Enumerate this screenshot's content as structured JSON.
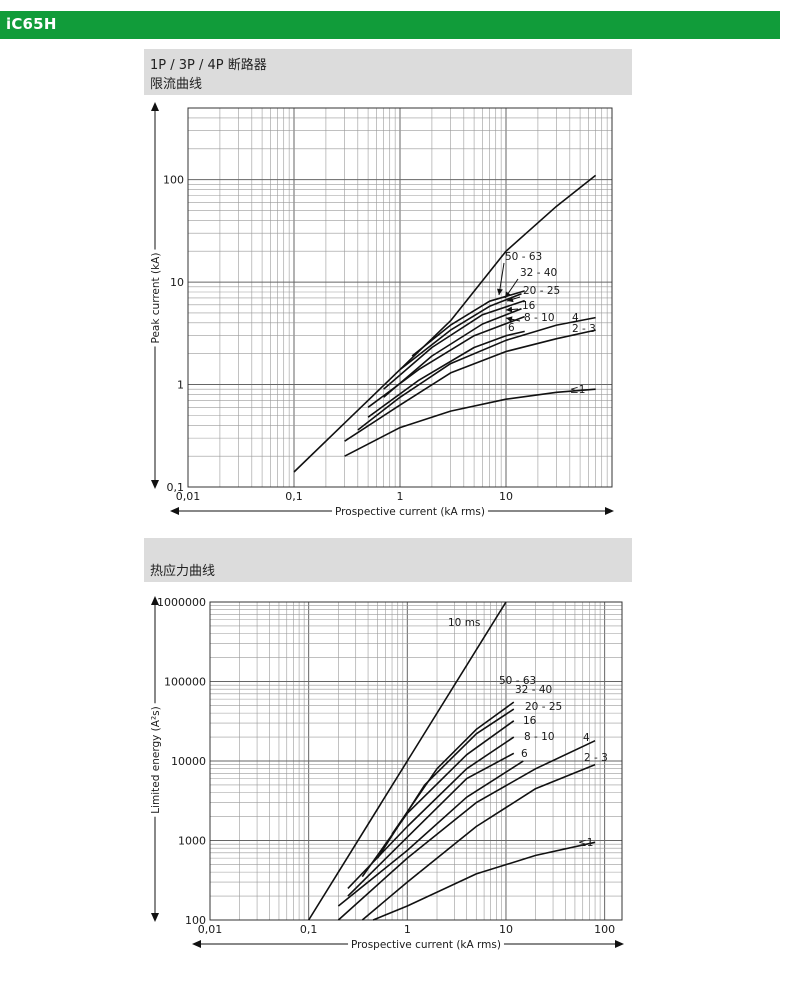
{
  "header": {
    "title": "iC65H"
  },
  "charts_meta": {
    "chart1_heading": [
      "1P / 3P / 4P 断路器",
      "限流曲线"
    ],
    "chart2_heading": "热应力曲线"
  },
  "chart_data": [
    {
      "type": "line",
      "title": "限流曲线",
      "xlabel": "Prospective current (kA rms)",
      "ylabel": "Peak current (kA)",
      "xscale": "log",
      "yscale": "log",
      "xlim": [
        0.01,
        100
      ],
      "ylim": [
        0.1,
        500
      ],
      "grid": true,
      "xticks": [
        {
          "v": 0.01,
          "label": "0,01"
        },
        {
          "v": 0.1,
          "label": "0,1"
        },
        {
          "v": 1,
          "label": "1"
        },
        {
          "v": 10,
          "label": "10"
        }
      ],
      "yticks": [
        {
          "v": 0.1,
          "label": "0,1"
        },
        {
          "v": 1,
          "label": "1"
        },
        {
          "v": 10,
          "label": "10"
        },
        {
          "v": 100,
          "label": "100"
        }
      ],
      "series": [
        {
          "name": "",
          "points": [
            [
              0.1,
              0.14
            ],
            [
              0.3,
              0.42
            ],
            [
              1,
              1.4
            ],
            [
              3,
              4.2
            ],
            [
              10,
              20
            ],
            [
              30,
              55
            ],
            [
              70,
              110
            ]
          ]
        },
        {
          "name": "50 - 63",
          "points": [
            [
              1.3,
              1.9
            ],
            [
              3,
              3.8
            ],
            [
              7,
              6.5
            ],
            [
              15,
              8.2
            ]
          ]
        },
        {
          "name": "32 - 40",
          "points": [
            [
              1.0,
              1.4
            ],
            [
              3,
              3.4
            ],
            [
              7,
              5.8
            ],
            [
              14,
              7.7
            ]
          ]
        },
        {
          "name": "20 - 25",
          "points": [
            [
              0.7,
              0.9
            ],
            [
              2,
              2.3
            ],
            [
              6,
              4.8
            ],
            [
              15,
              6.6
            ]
          ]
        },
        {
          "name": "16",
          "points": [
            [
              0.7,
              0.75
            ],
            [
              2,
              1.9
            ],
            [
              6,
              3.9
            ],
            [
              14,
              5.5
            ]
          ]
        },
        {
          "name": "8 - 10",
          "points": [
            [
              0.5,
              0.6
            ],
            [
              1.5,
              1.4
            ],
            [
              5,
              3.0
            ],
            [
              15,
              4.6
            ]
          ]
        },
        {
          "name": "6",
          "points": [
            [
              0.5,
              0.48
            ],
            [
              1.5,
              1.1
            ],
            [
              5,
              2.3
            ],
            [
              10,
              3.0
            ],
            [
              15,
              3.3
            ]
          ]
        },
        {
          "name": "4",
          "points": [
            [
              0.4,
              0.36
            ],
            [
              1,
              0.75
            ],
            [
              3,
              1.6
            ],
            [
              10,
              2.7
            ],
            [
              30,
              3.8
            ],
            [
              70,
              4.5
            ]
          ]
        },
        {
          "name": "2 - 3",
          "points": [
            [
              0.3,
              0.28
            ],
            [
              1,
              0.63
            ],
            [
              3,
              1.3
            ],
            [
              10,
              2.1
            ],
            [
              30,
              2.8
            ],
            [
              70,
              3.4
            ]
          ]
        },
        {
          "name": "≤1",
          "points": [
            [
              0.3,
              0.2
            ],
            [
              1,
              0.38
            ],
            [
              3,
              0.55
            ],
            [
              10,
              0.72
            ],
            [
              30,
              0.84
            ],
            [
              70,
              0.9
            ]
          ]
        }
      ]
    },
    {
      "type": "line",
      "title": "热应力曲线",
      "xlabel": "Prospective current (kA rms)",
      "ylabel": "Limited energy (A²s)",
      "xscale": "log",
      "yscale": "log",
      "xlim": [
        0.01,
        150
      ],
      "ylim": [
        100,
        1000000
      ],
      "grid": true,
      "xticks": [
        {
          "v": 0.01,
          "label": "0,01"
        },
        {
          "v": 0.1,
          "label": "0,1"
        },
        {
          "v": 1,
          "label": "1"
        },
        {
          "v": 10,
          "label": "10"
        },
        {
          "v": 100,
          "label": "100"
        }
      ],
      "yticks": [
        {
          "v": 100,
          "label": "100"
        },
        {
          "v": 1000,
          "label": "1000"
        },
        {
          "v": 10000,
          "label": "10000"
        },
        {
          "v": 100000,
          "label": "100000"
        },
        {
          "v": 1000000,
          "label": "1000000"
        }
      ],
      "series": [
        {
          "name": "10 ms",
          "points": [
            [
              0.1,
              100
            ],
            [
              1,
              10000
            ],
            [
              10,
              1000000
            ]
          ]
        },
        {
          "name": "50 - 63",
          "points": [
            [
              0.7,
              1200
            ],
            [
              2,
              8000
            ],
            [
              5,
              25000
            ],
            [
              12,
              55000
            ]
          ]
        },
        {
          "name": "32 - 40",
          "points": [
            [
              0.5,
              600
            ],
            [
              1.5,
              5000
            ],
            [
              5,
              22000
            ],
            [
              12,
              45000
            ]
          ]
        },
        {
          "name": "20 - 25",
          "points": [
            [
              0.35,
              350
            ],
            [
              1,
              2200
            ],
            [
              4,
              12000
            ],
            [
              12,
              32000
            ]
          ]
        },
        {
          "name": "16",
          "points": [
            [
              0.25,
              250
            ],
            [
              1,
              1500
            ],
            [
              4,
              8000
            ],
            [
              12,
              20000
            ]
          ]
        },
        {
          "name": "8 - 10",
          "points": [
            [
              0.25,
              200
            ],
            [
              1,
              1100
            ],
            [
              4,
              6000
            ],
            [
              12,
              12500
            ]
          ]
        },
        {
          "name": "6",
          "points": [
            [
              0.2,
              150
            ],
            [
              1,
              750
            ],
            [
              4,
              3500
            ],
            [
              15,
              10000
            ]
          ]
        },
        {
          "name": "4",
          "points": [
            [
              0.2,
              100
            ],
            [
              1,
              600
            ],
            [
              5,
              3000
            ],
            [
              20,
              8000
            ],
            [
              80,
              18000
            ]
          ]
        },
        {
          "name": "2 - 3",
          "points": [
            [
              0.35,
              100
            ],
            [
              1,
              300
            ],
            [
              5,
              1500
            ],
            [
              20,
              4500
            ],
            [
              80,
              9000
            ]
          ]
        },
        {
          "name": "≤1",
          "points": [
            [
              0.45,
              100
            ],
            [
              1,
              150
            ],
            [
              5,
              380
            ],
            [
              20,
              650
            ],
            [
              80,
              950
            ]
          ]
        }
      ]
    }
  ]
}
